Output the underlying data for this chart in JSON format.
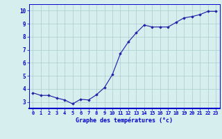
{
  "x": [
    0,
    1,
    2,
    3,
    4,
    5,
    6,
    7,
    8,
    9,
    10,
    11,
    12,
    13,
    14,
    15,
    16,
    17,
    18,
    19,
    20,
    21,
    22,
    23
  ],
  "y": [
    3.7,
    3.5,
    3.5,
    3.3,
    3.15,
    2.85,
    3.2,
    3.15,
    3.55,
    4.1,
    5.1,
    6.7,
    7.6,
    8.3,
    8.9,
    8.75,
    8.75,
    8.75,
    9.1,
    9.45,
    9.55,
    9.7,
    9.95,
    9.95
  ],
  "line_color": "#2222aa",
  "marker": "D",
  "marker_size": 1.8,
  "bg_color": "#d6eeee",
  "grid_color": "#aacccc",
  "xlabel": "Graphe des températures (°c)",
  "xlabel_color": "#0000cc",
  "tick_color": "#0000cc",
  "axis_color": "#0000cc",
  "ylim": [
    2.5,
    10.5
  ],
  "xlim": [
    -0.5,
    23.5
  ],
  "yticks": [
    3,
    4,
    5,
    6,
    7,
    8,
    9,
    10
  ],
  "xticks": [
    0,
    1,
    2,
    3,
    4,
    5,
    6,
    7,
    8,
    9,
    10,
    11,
    12,
    13,
    14,
    15,
    16,
    17,
    18,
    19,
    20,
    21,
    22,
    23
  ],
  "xtick_labels": [
    "0",
    "1",
    "2",
    "3",
    "4",
    "5",
    "6",
    "7",
    "8",
    "9",
    "10",
    "11",
    "12",
    "13",
    "14",
    "15",
    "16",
    "17",
    "18",
    "19",
    "20",
    "21",
    "22",
    "23"
  ],
  "ytick_labels": [
    "3",
    "4",
    "5",
    "6",
    "7",
    "8",
    "9",
    "10"
  ]
}
